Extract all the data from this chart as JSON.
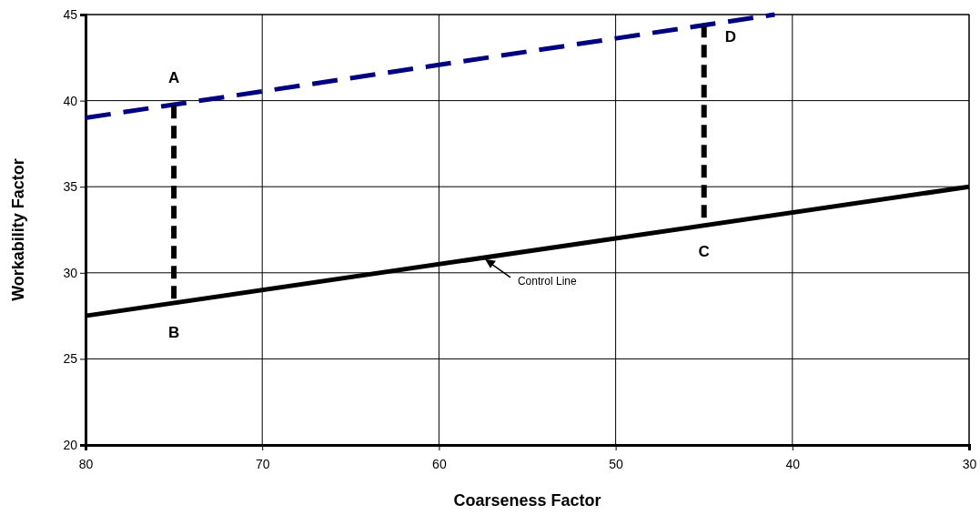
{
  "chart_data": {
    "type": "line",
    "xlabel": "Coarseness Factor",
    "ylabel": "Workability Factor",
    "xlim": [
      80,
      30
    ],
    "xticks": [
      80,
      70,
      60,
      50,
      40,
      30
    ],
    "ylim": [
      20,
      45
    ],
    "yticks": [
      20,
      25,
      30,
      35,
      40,
      45
    ],
    "grid": true,
    "marker": "none",
    "series": [
      {
        "x": [
          80,
          41
        ],
        "values": [
          39,
          45
        ],
        "color": "#000080",
        "line_style": "dashed"
      },
      {
        "x": [
          80,
          30
        ],
        "values": [
          27.5,
          35
        ],
        "color": "#000000",
        "line_style": "solid"
      },
      {
        "x": [
          75,
          75
        ],
        "values": [
          28.5,
          39.8
        ],
        "color": "#000000",
        "line_style": "dashed"
      },
      {
        "x": [
          45,
          45
        ],
        "values": [
          33.2,
          44.3
        ],
        "color": "#000000",
        "line_style": "dashed"
      }
    ],
    "annotations": [
      {
        "text": "A",
        "x": 75,
        "y": 39.8
      },
      {
        "text": "B",
        "x": 75,
        "y": 28.5
      },
      {
        "text": "C",
        "x": 45,
        "y": 33.2
      },
      {
        "text": "D",
        "x": 43.5,
        "y": 44.6
      },
      {
        "text": "Control Line",
        "x": 57.5,
        "y": 30.9
      }
    ]
  }
}
